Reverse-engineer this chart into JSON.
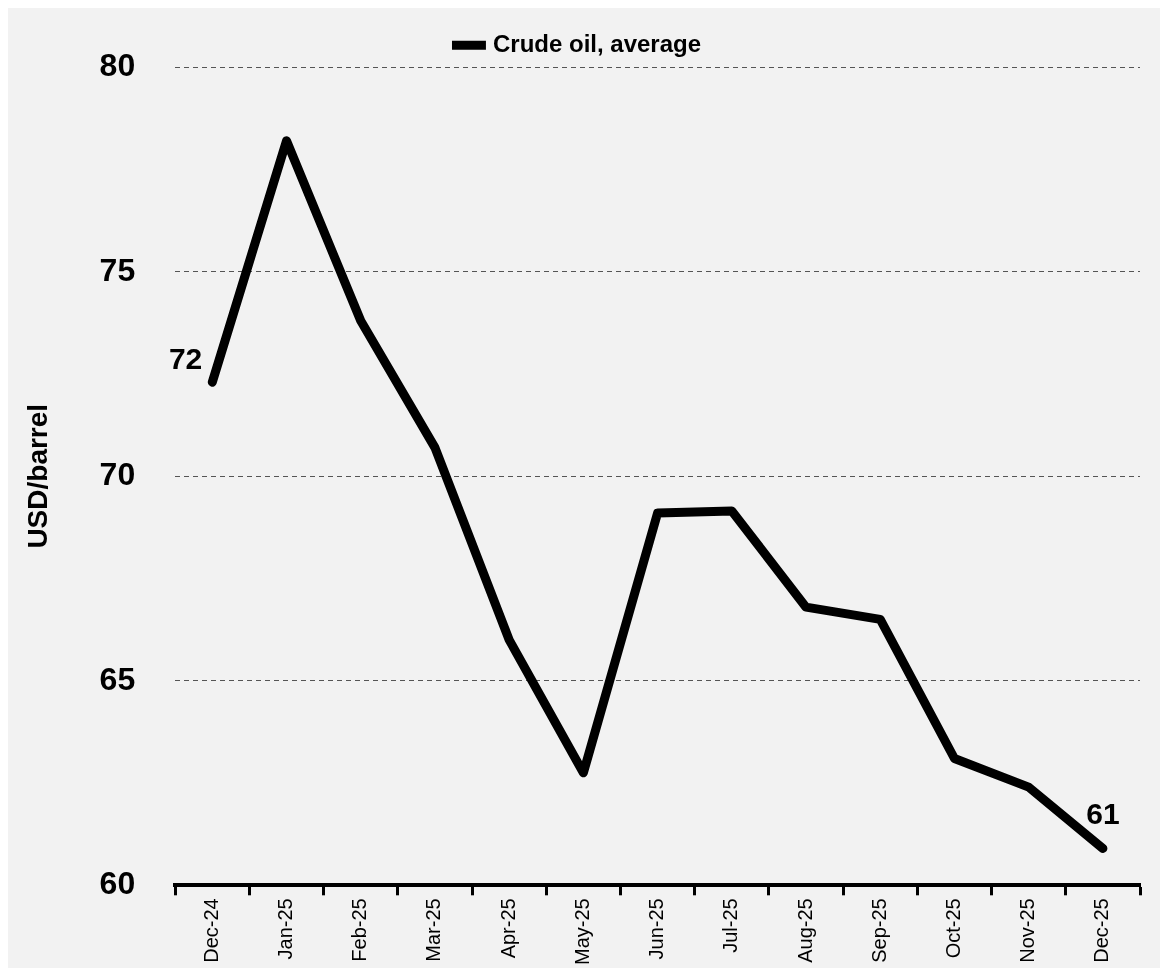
{
  "chart_data": {
    "type": "line",
    "ylabel": "USD/barrel",
    "categories": [
      "Dec-24",
      "Jan-25",
      "Feb-25",
      "Mar-25",
      "Apr-25",
      "May-25",
      "Jun-25",
      "Jul-25",
      "Aug-25",
      "Sep-25",
      "Oct-25",
      "Nov-25",
      "Dec-25"
    ],
    "series": [
      {
        "name": "Crude oil, average",
        "color": "#000000",
        "values": [
          72.3,
          78.2,
          73.8,
          70.7,
          66.0,
          62.75,
          69.1,
          69.15,
          66.8,
          66.5,
          63.1,
          62.4,
          60.9
        ],
        "value_labels": [
          "72",
          null,
          null,
          null,
          null,
          null,
          null,
          null,
          null,
          null,
          null,
          null,
          "61"
        ]
      }
    ],
    "ylim": [
      60,
      80
    ],
    "yticks": [
      60,
      65,
      70,
      75,
      80
    ],
    "grid": "y",
    "legend": "top",
    "marker": "none",
    "line_style": "solid"
  }
}
